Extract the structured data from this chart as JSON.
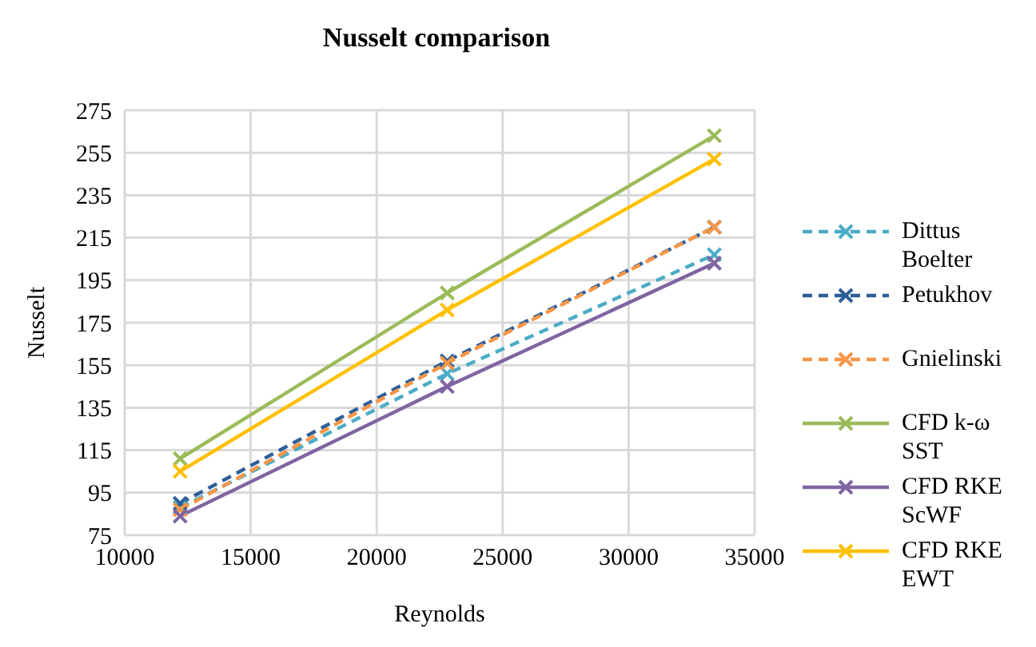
{
  "chart_data": {
    "type": "line",
    "title": "Nusselt comparison",
    "xlabel": "Reynolds",
    "ylabel": "Nusselt",
    "x": [
      12200,
      22800,
      33400
    ],
    "series": [
      {
        "name": "Dittus Boelter",
        "color": "#4bacc6",
        "line_style": "dashed",
        "values": [
          88,
          151,
          207
        ]
      },
      {
        "name": "Petukhov",
        "color": "#2e5f99",
        "line_style": "dashed",
        "values": [
          90,
          157,
          220
        ]
      },
      {
        "name": "Gnielinski",
        "color": "#f79646",
        "line_style": "dashed",
        "values": [
          87,
          156,
          220
        ]
      },
      {
        "name": "CFD k-ω SST",
        "color": "#9bbb59",
        "line_style": "solid",
        "values": [
          111,
          189,
          263
        ]
      },
      {
        "name": "CFD RKE ScWF",
        "color": "#8064a2",
        "line_style": "solid",
        "values": [
          84,
          145,
          203
        ]
      },
      {
        "name": "CFD RKE EWT",
        "color": "#ffc000",
        "line_style": "solid",
        "values": [
          105,
          181,
          252
        ]
      }
    ],
    "xlim": [
      10000,
      35000
    ],
    "xticks": [
      10000,
      15000,
      20000,
      25000,
      30000,
      35000
    ],
    "ylim": [
      75,
      275
    ],
    "yticks": [
      75,
      95,
      115,
      135,
      155,
      175,
      195,
      215,
      235,
      255,
      275
    ],
    "grid": true,
    "legend": "right",
    "marker": "cross"
  }
}
